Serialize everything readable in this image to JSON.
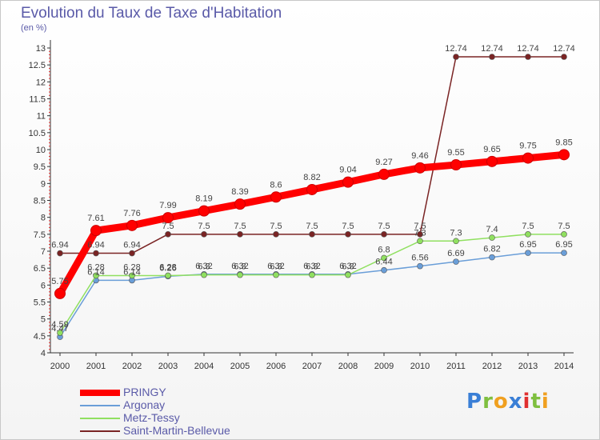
{
  "header": {
    "title": "Evolution du Taux de Taxe d'Habitation",
    "unit": "(en %)"
  },
  "logo": {
    "text": "Proxiti"
  },
  "chart_data": {
    "type": "line",
    "title": "Evolution du Taux de Taxe d'Habitation",
    "ylabel": "(en %)",
    "xlabel": "",
    "x": [
      "2000",
      "2001",
      "2002",
      "2003",
      "2004",
      "2005",
      "2006",
      "2007",
      "2008",
      "2009",
      "2010",
      "2011",
      "2012",
      "2013",
      "2014"
    ],
    "ylim": [
      4,
      13
    ],
    "yticks": [
      "4",
      "4.5",
      "5",
      "5.5",
      "6",
      "6.5",
      "7",
      "7.5",
      "8",
      "8.5",
      "9",
      "9.5",
      "10",
      "10.5",
      "11",
      "11.5",
      "12",
      "12.5",
      "13"
    ],
    "grid": false,
    "legend_position": "bottom-left",
    "series": [
      {
        "name": "PRINGY",
        "color": "#ff0000",
        "values": [
          5.75,
          7.61,
          7.76,
          7.99,
          8.19,
          8.39,
          8.6,
          8.82,
          9.04,
          9.27,
          9.46,
          9.55,
          9.65,
          9.75,
          9.85
        ],
        "labels": [
          "5.75",
          "7.61",
          "7.76",
          "7.99",
          "8.19",
          "8.39",
          "8.6",
          "8.82",
          "9.04",
          "9.27",
          "9.46",
          "9.55",
          "9.65",
          "9.75",
          "9.85"
        ]
      },
      {
        "name": "Argonay",
        "color": "#6a9ed8",
        "values": [
          4.47,
          6.14,
          6.14,
          6.26,
          6.32,
          6.32,
          6.32,
          6.32,
          6.32,
          6.44,
          6.56,
          6.69,
          6.82,
          6.95,
          6.95
        ],
        "labels": [
          "4.47",
          "6.14",
          "6.14",
          "6.26",
          "6.32",
          "6.32",
          "6.32",
          "6.32",
          "6.32",
          "6.44",
          "6.56",
          "6.69",
          "6.82",
          "6.95",
          "6.95"
        ]
      },
      {
        "name": "Metz-Tessy",
        "color": "#90e060",
        "values": [
          4.59,
          6.28,
          6.28,
          6.28,
          6.3,
          6.3,
          6.3,
          6.3,
          6.3,
          6.8,
          7.3,
          7.3,
          7.4,
          7.5,
          7.5
        ],
        "labels": [
          "4.59",
          "6.28",
          "6.28",
          "6.28",
          "6.3",
          "6.3",
          "6.3",
          "6.3",
          "6.3",
          "6.8",
          "7.3",
          "7.3",
          "7.4",
          "7.5",
          "7.5"
        ]
      },
      {
        "name": "Saint-Martin-Bellevue",
        "color": "#7a2424",
        "values": [
          6.94,
          6.94,
          6.94,
          7.5,
          7.5,
          7.5,
          7.5,
          7.5,
          7.5,
          7.5,
          7.5,
          12.74,
          12.74,
          12.74,
          12.74
        ],
        "labels": [
          "6.94",
          "6.94",
          "6.94",
          "7.5",
          "7.5",
          "7.5",
          "7.5",
          "7.5",
          "7.5",
          "7.5",
          "7.5",
          "12.74",
          "12.74",
          "12.74",
          "12.74"
        ]
      }
    ]
  }
}
